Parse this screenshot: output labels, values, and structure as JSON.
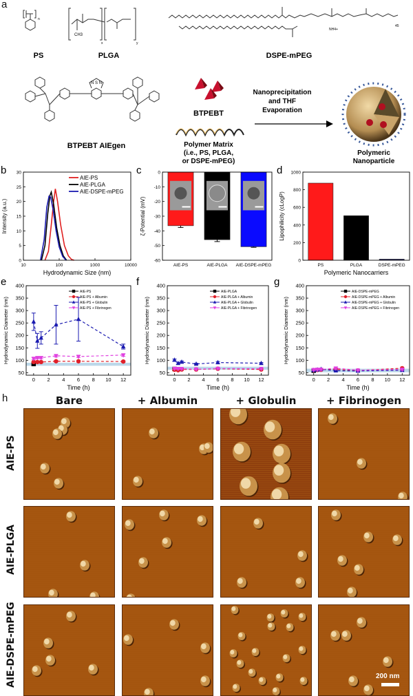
{
  "panel_a": {
    "label": "a",
    "structures": [
      {
        "name": "PS",
        "sub": "n"
      },
      {
        "name": "PLGA",
        "sub_x": "x",
        "sub_y": "y",
        "methyl": "CH3"
      },
      {
        "name": "DSPE-mPEG",
        "peg_repeat": "45",
        "counter_ion": "NH4+"
      }
    ],
    "aiegen_label": "BTPEBT AIEgen",
    "aiegen_core": "N S N",
    "btpebt_label": "BTPEBT",
    "polymer_matrix_label": [
      "Polymer Matrix",
      "(i.e., PS, PLGA,",
      "or DSPE-mPEG)"
    ],
    "arrow_label": [
      "Nanoprecipitation",
      "and THF",
      "Evaporation"
    ],
    "nanoparticle_label": [
      "Polymeric",
      "Nanoparticle"
    ]
  },
  "afm": {
    "label": "h",
    "columns": [
      "Bare",
      "+ Albumin",
      "+ Globulin",
      "+ Fibrinogen"
    ],
    "rows": [
      "AIE-PS",
      "AIE-PLGA",
      "AIE-DSPE-mPEG"
    ],
    "scale_bar": "200 nm"
  },
  "chart_data": [
    {
      "id": "b",
      "label": "b",
      "type": "line",
      "title": "",
      "xlabel": "Hydrodynamic Size (nm)",
      "ylabel": "Intensity (a.u.)",
      "xscale": "log",
      "xlim": [
        10,
        10000
      ],
      "ylim": [
        0,
        30
      ],
      "xticks": [
        "10",
        "100",
        "1000",
        "10000"
      ],
      "yticks": [
        "0",
        "5",
        "10",
        "15",
        "20",
        "25",
        "30"
      ],
      "legend": "top-right",
      "series": [
        {
          "name": "AIE-PS",
          "color": "#e02020",
          "x": [
            40,
            50,
            60,
            70,
            78,
            90,
            110,
            140,
            180,
            220,
            260
          ],
          "y": [
            0,
            3,
            12,
            20,
            24.3,
            20,
            12,
            5,
            1.5,
            0.3,
            0
          ]
        },
        {
          "name": "AIE-PLGA",
          "color": "#000000",
          "x": [
            32,
            40,
            48,
            55,
            60,
            70,
            85,
            105,
            130,
            160
          ],
          "y": [
            0,
            5,
            16,
            22,
            23.2,
            19,
            11,
            5,
            1.5,
            0
          ]
        },
        {
          "name": "AIE-DSPE-mPEG",
          "color": "#1a1ab0",
          "x": [
            30,
            38,
            45,
            52,
            58,
            68,
            82,
            100,
            125,
            155
          ],
          "y": [
            0,
            7,
            18,
            21.8,
            21.5,
            17,
            10,
            4.5,
            1.3,
            0
          ]
        }
      ]
    },
    {
      "id": "c",
      "label": "c",
      "type": "bar",
      "title": "",
      "xlabel": "",
      "ylabel": "ζ-Potential (mV)",
      "ylim": [
        -60,
        0
      ],
      "yticks": [
        "0",
        "-10",
        "-20",
        "-30",
        "-40",
        "-50",
        "-60"
      ],
      "categories": [
        "AIE-PS",
        "AIE-PLGA",
        "AIE-DSPE-mPEG"
      ],
      "values": [
        -36.5,
        -46,
        -50.8
      ],
      "errors": [
        1.2,
        1.3,
        0.4
      ],
      "colors": [
        "#ff1a1a",
        "#000000",
        "#0a0aff"
      ],
      "insets": "TEM images"
    },
    {
      "id": "d",
      "label": "d",
      "type": "bar",
      "title": "",
      "xlabel": "Polymeric Nanocarriers",
      "ylabel": "Lipophilicity (cLogP)",
      "ylim": [
        0,
        1000
      ],
      "yticks": [
        "0",
        "200",
        "400",
        "600",
        "800",
        "1000"
      ],
      "categories": [
        "PS",
        "PLGA",
        "DSPE-mPEG"
      ],
      "values": [
        875,
        505,
        12
      ],
      "colors": [
        "#ff1a1a",
        "#000000",
        "#1a1a60"
      ]
    },
    {
      "id": "e",
      "label": "e",
      "type": "line",
      "xlabel": "Time (h)",
      "ylabel": "Hydrodynamic Diameter (nm)",
      "xlim": [
        -1,
        13
      ],
      "ylim": [
        40,
        400
      ],
      "xticks": [
        "0",
        "2",
        "4",
        "6",
        "8",
        "10",
        "12"
      ],
      "yticks": [
        "50",
        "100",
        "150",
        "200",
        "250",
        "300",
        "350",
        "400"
      ],
      "band": [
        78,
        90
      ],
      "legend": "top-right",
      "series": [
        {
          "name": "AIE-PS",
          "color": "#000000",
          "marker": "square",
          "x": [
            0
          ],
          "y": [
            85
          ],
          "err": [
            0
          ]
        },
        {
          "name": "AIE-PS + Albumin",
          "color": "#e0202a",
          "marker": "circle",
          "x": [
            0,
            0.5,
            1,
            3,
            6,
            12
          ],
          "y": [
            93,
            93,
            93,
            96,
            96,
            95
          ],
          "err": [
            3,
            3,
            3,
            3,
            3,
            3
          ]
        },
        {
          "name": "AIE-PS + Globulin",
          "color": "#1a1ab0",
          "marker": "triangle",
          "x": [
            0,
            0.5,
            1,
            3,
            6,
            12
          ],
          "y": [
            255,
            178,
            190,
            243,
            265,
            155
          ],
          "err": [
            35,
            30,
            25,
            78,
            88,
            10
          ]
        },
        {
          "name": "AIE-PS + Fibrinogen",
          "color": "#e040e0",
          "marker": "triangle-down",
          "x": [
            0,
            0.5,
            1,
            3,
            6,
            12
          ],
          "y": [
            107,
            110,
            110,
            118,
            115,
            121
          ],
          "err": [
            4,
            4,
            4,
            5,
            4,
            5
          ]
        }
      ]
    },
    {
      "id": "f",
      "label": "f",
      "type": "line",
      "xlabel": "Time (h)",
      "ylabel": "Hydrodynamic Diameter (nm)",
      "xlim": [
        -1,
        13
      ],
      "ylim": [
        40,
        400
      ],
      "xticks": [
        "0",
        "2",
        "4",
        "6",
        "8",
        "10",
        "12"
      ],
      "yticks": [
        "50",
        "100",
        "150",
        "200",
        "250",
        "300",
        "350",
        "400"
      ],
      "band": [
        62,
        74
      ],
      "legend": "top-right",
      "series": [
        {
          "name": "AIE-PLGA",
          "color": "#000000",
          "marker": "square",
          "x": [
            0
          ],
          "y": [
            65
          ],
          "err": [
            0
          ]
        },
        {
          "name": "AIE-PLGA + Albumin",
          "color": "#e0202a",
          "marker": "circle",
          "x": [
            0,
            0.5,
            1,
            3,
            6,
            12
          ],
          "y": [
            62,
            60,
            63,
            63,
            66,
            63
          ],
          "err": [
            3,
            3,
            3,
            3,
            3,
            3
          ]
        },
        {
          "name": "AIE-PLGA + Globulin",
          "color": "#1a1ab0",
          "marker": "triangle",
          "x": [
            0,
            0.5,
            1,
            3,
            6,
            12
          ],
          "y": [
            101,
            88,
            93,
            85,
            91,
            88
          ],
          "err": [
            4,
            4,
            4,
            3,
            4,
            3
          ]
        },
        {
          "name": "AIE-PLGA + Fibrinogen",
          "color": "#e040e0",
          "marker": "triangle-down",
          "x": [
            0,
            0.5,
            1,
            3,
            6,
            12
          ],
          "y": [
            67,
            66,
            66,
            64,
            67,
            66
          ],
          "err": [
            3,
            3,
            3,
            3,
            3,
            3
          ]
        }
      ]
    },
    {
      "id": "g",
      "label": "g",
      "type": "line",
      "xlabel": "Time (h)",
      "ylabel": "Hydrodynamic Diameter (nm)",
      "xlim": [
        -1,
        13
      ],
      "ylim": [
        40,
        400
      ],
      "xticks": [
        "0",
        "2",
        "4",
        "6",
        "8",
        "10",
        "12"
      ],
      "yticks": [
        "50",
        "100",
        "150",
        "200",
        "250",
        "300",
        "350",
        "400"
      ],
      "band": [
        52,
        66
      ],
      "legend": "top-right",
      "series": [
        {
          "name": "AIE-DSPE-mPEG",
          "color": "#000000",
          "marker": "square",
          "x": [
            0
          ],
          "y": [
            58
          ],
          "err": [
            0
          ]
        },
        {
          "name": "AIE-DSPE-mPEG + Albumin",
          "color": "#e0202a",
          "marker": "circle",
          "x": [
            0,
            0.5,
            1,
            3,
            6,
            12
          ],
          "y": [
            60,
            61,
            62,
            64,
            59,
            68
          ],
          "err": [
            3,
            3,
            3,
            3,
            3,
            3
          ]
        },
        {
          "name": "AIE-DSPE-mPEG + Globulin",
          "color": "#1a1ab0",
          "marker": "triangle",
          "x": [
            0,
            0.5,
            1,
            3,
            6,
            12
          ],
          "y": [
            60,
            62,
            64,
            58,
            57,
            60
          ],
          "err": [
            3,
            3,
            3,
            3,
            3,
            3
          ]
        },
        {
          "name": "AIE-DSPE-mPEG + Fibrinogen",
          "color": "#e040e0",
          "marker": "triangle-down",
          "x": [
            0,
            0.5,
            1,
            3,
            6,
            12
          ],
          "y": [
            62,
            63,
            63,
            68,
            60,
            63
          ],
          "err": [
            3,
            3,
            3,
            5,
            3,
            3
          ]
        }
      ]
    }
  ]
}
